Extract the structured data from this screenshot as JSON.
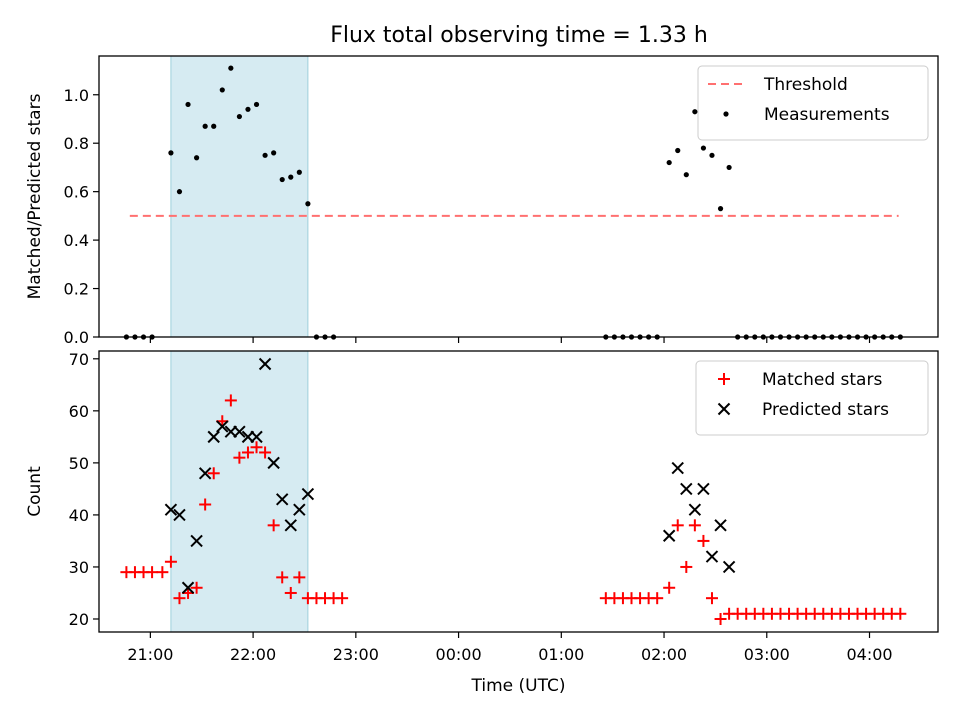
{
  "title": "Flux total observing time = 1.33 h",
  "chart_data": [
    {
      "type": "scatter",
      "panel": "top",
      "ylabel": "Matched/Predicted stars",
      "xlabel": "",
      "xlim": [
        "20:30",
        "04:40"
      ],
      "ylim": [
        0,
        1.16
      ],
      "yticks": [
        0.0,
        0.2,
        0.4,
        0.6,
        0.8,
        1.0
      ],
      "ytick_labels": [
        "0.0",
        "0.2",
        "0.4",
        "0.6",
        "0.8",
        "1.0"
      ],
      "legend_position": "top-right",
      "shaded_span": [
        "21:12",
        "22:32"
      ],
      "threshold": {
        "name": "Threshold",
        "color": "#ff7070",
        "x": [
          "20:48",
          "04:17"
        ],
        "y": 0.5
      },
      "series": [
        {
          "name": "Measurements",
          "color": "#000000",
          "x": [
            "20:46",
            "20:51",
            "20:56",
            "21:01",
            "21:12",
            "21:17",
            "21:22",
            "21:27",
            "21:32",
            "21:37",
            "21:42",
            "21:47",
            "21:52",
            "21:57",
            "22:02",
            "22:07",
            "22:12",
            "22:17",
            "22:22",
            "22:27",
            "22:32",
            "22:37",
            "22:42",
            "22:47",
            "01:26",
            "01:31",
            "01:36",
            "01:41",
            "01:46",
            "01:51",
            "01:56",
            "02:03",
            "02:08",
            "02:13",
            "02:18",
            "02:23",
            "02:28",
            "02:33",
            "02:38",
            "02:43",
            "02:48",
            "02:53",
            "02:58",
            "03:03",
            "03:08",
            "03:13",
            "03:18",
            "03:23",
            "03:28",
            "03:33",
            "03:38",
            "03:43",
            "03:48",
            "03:53",
            "03:58",
            "04:03",
            "04:08",
            "04:13",
            "04:18"
          ],
          "y": [
            0,
            0,
            0,
            0,
            0.76,
            0.6,
            0.96,
            0.74,
            0.87,
            0.87,
            1.02,
            1.11,
            0.91,
            0.94,
            0.96,
            0.75,
            0.76,
            0.65,
            0.66,
            0.68,
            0.55,
            0,
            0,
            0,
            0,
            0,
            0,
            0,
            0,
            0,
            0,
            0.72,
            0.77,
            0.67,
            0.93,
            0.78,
            0.75,
            0.53,
            0.7,
            0,
            0,
            0,
            0,
            0,
            0,
            0,
            0,
            0,
            0,
            0,
            0,
            0,
            0,
            0,
            0,
            0,
            0,
            0,
            0
          ]
        }
      ]
    },
    {
      "type": "scatter",
      "panel": "bottom",
      "ylabel": "Count",
      "xlabel": "Time (UTC)",
      "xlim": [
        "20:30",
        "04:40"
      ],
      "ylim": [
        17.5,
        71.5
      ],
      "yticks": [
        20,
        30,
        40,
        50,
        60,
        70
      ],
      "ytick_labels": [
        "20",
        "30",
        "40",
        "50",
        "60",
        "70"
      ],
      "xticks": [
        "21:00",
        "22:00",
        "23:00",
        "00:00",
        "01:00",
        "02:00",
        "03:00",
        "04:00"
      ],
      "xtick_labels": [
        "21:00",
        "22:00",
        "23:00",
        "00:00",
        "01:00",
        "02:00",
        "03:00",
        "04:00"
      ],
      "legend_position": "top-right",
      "shaded_span": [
        "21:12",
        "22:32"
      ],
      "series": [
        {
          "name": "Matched stars",
          "marker": "plus",
          "color": "#ff0000",
          "x": [
            "20:46",
            "20:51",
            "20:56",
            "21:01",
            "21:07",
            "21:12",
            "21:17",
            "21:22",
            "21:27",
            "21:32",
            "21:37",
            "21:42",
            "21:47",
            "21:52",
            "21:57",
            "22:02",
            "22:07",
            "22:12",
            "22:17",
            "22:22",
            "22:27",
            "22:32",
            "22:37",
            "22:42",
            "22:47",
            "22:52",
            "01:26",
            "01:31",
            "01:36",
            "01:41",
            "01:46",
            "01:51",
            "01:56",
            "02:03",
            "02:08",
            "02:13",
            "02:18",
            "02:23",
            "02:28",
            "02:33",
            "02:38",
            "02:43",
            "02:48",
            "02:53",
            "02:58",
            "03:03",
            "03:08",
            "03:13",
            "03:18",
            "03:23",
            "03:28",
            "03:33",
            "03:38",
            "03:43",
            "03:48",
            "03:53",
            "03:58",
            "04:03",
            "04:08",
            "04:13",
            "04:18"
          ],
          "y": [
            29,
            29,
            29,
            29,
            29,
            31,
            24,
            25,
            26,
            42,
            48,
            58,
            62,
            51,
            52,
            53,
            52,
            38,
            28,
            25,
            28,
            24,
            24,
            24,
            24,
            24,
            24,
            24,
            24,
            24,
            24,
            24,
            24,
            26,
            38,
            30,
            38,
            35,
            24,
            20,
            21,
            21,
            21,
            21,
            21,
            21,
            21,
            21,
            21,
            21,
            21,
            21,
            21,
            21,
            21,
            21,
            21,
            21,
            21,
            21,
            21
          ]
        },
        {
          "name": "Predicted stars",
          "marker": "x",
          "color": "#000000",
          "x": [
            "21:12",
            "21:17",
            "21:22",
            "21:27",
            "21:32",
            "21:37",
            "21:42",
            "21:47",
            "21:52",
            "21:57",
            "22:02",
            "22:07",
            "22:12",
            "22:17",
            "22:22",
            "22:27",
            "22:32",
            "02:03",
            "02:08",
            "02:13",
            "02:18",
            "02:23",
            "02:28",
            "02:33",
            "02:38"
          ],
          "y": [
            41,
            40,
            26,
            35,
            48,
            55,
            57,
            56,
            56,
            55,
            55,
            69,
            50,
            43,
            38,
            41,
            44,
            36,
            49,
            45,
            41,
            45,
            32,
            38,
            30
          ]
        }
      ]
    }
  ]
}
